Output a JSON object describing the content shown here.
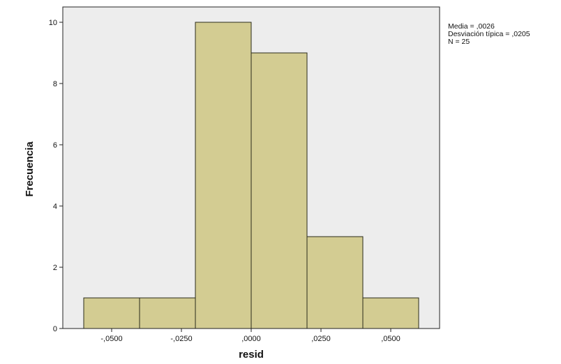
{
  "chart_data": {
    "type": "bar",
    "subtype": "histogram",
    "xlabel": "resid",
    "ylabel": "Frecuencia",
    "bins": [
      {
        "start": -0.06,
        "end": -0.04,
        "count": 1
      },
      {
        "start": -0.04,
        "end": -0.02,
        "count": 1
      },
      {
        "start": -0.02,
        "end": 0.0,
        "count": 10
      },
      {
        "start": 0.0,
        "end": 0.02,
        "count": 9
      },
      {
        "start": 0.02,
        "end": 0.04,
        "count": 3
      },
      {
        "start": 0.04,
        "end": 0.06,
        "count": 1
      }
    ],
    "xticks": [
      {
        "value": -0.05,
        "label": "-,0500"
      },
      {
        "value": -0.025,
        "label": "-,0250"
      },
      {
        "value": 0.0,
        "label": ",0000"
      },
      {
        "value": 0.025,
        "label": ",0250"
      },
      {
        "value": 0.05,
        "label": ",0500"
      }
    ],
    "yticks": [
      {
        "value": 0,
        "label": "0"
      },
      {
        "value": 2,
        "label": "2"
      },
      {
        "value": 4,
        "label": "4"
      },
      {
        "value": 6,
        "label": "6"
      },
      {
        "value": 8,
        "label": "8"
      },
      {
        "value": 10,
        "label": "10"
      }
    ],
    "xlim": [
      -0.0675,
      0.0675
    ],
    "ylim": [
      0,
      10.5
    ],
    "grid": false,
    "stats": {
      "mean": "Media = ,0026",
      "std": "Desviación típica = ,0205",
      "n": "N = 25"
    },
    "colors": {
      "bar_fill": "#d3cc92",
      "bar_stroke": "#2a2a1a",
      "plot_background": "#ededed",
      "axis": "#222222"
    }
  }
}
